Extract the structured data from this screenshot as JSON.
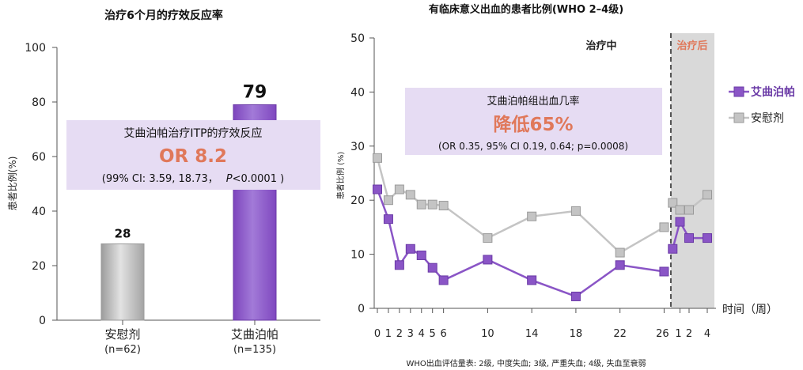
{
  "colors": {
    "purple": "#8a55c6",
    "purple_dark": "#6a3aa6",
    "gray": "#c4c4c4",
    "gray_dark": "#9a9a9a",
    "orange": "#e0785a",
    "callout_bg": "#e6dcf3",
    "post_bg": "#d9d9d9"
  },
  "chart_data": [
    {
      "type": "bar",
      "title": "治疗6个月的疗效反应率",
      "ylabel": "患者比例(%)",
      "ylim": [
        0,
        100
      ],
      "yticks": [
        0,
        20,
        40,
        60,
        80,
        100
      ],
      "categories": [
        {
          "name": "安慰剂",
          "n": "(n=62)",
          "value": 28,
          "label": "28",
          "color": "gray"
        },
        {
          "name": "艾曲泊帕",
          "n": "(n=135)",
          "value": 79,
          "label": "79",
          "color": "purple"
        }
      ],
      "callout": {
        "line1": "艾曲泊帕治疗ITP的疗效反应",
        "big": "OR 8.2",
        "ci": "(99% CI: 3.59, 18.73，",
        "p_italic": "P",
        "p_rest": "<0.0001 )"
      }
    },
    {
      "type": "line",
      "title": "有临床意义出血的患者比例(WHO 2–4级)",
      "ylabel": "患者比例 (%)",
      "ylim": [
        0,
        50
      ],
      "yticks": [
        0,
        10,
        20,
        30,
        40,
        50
      ],
      "xlabel": "时间（周）",
      "x_ticks_during": [
        0,
        1,
        2,
        3,
        4,
        5,
        6,
        10,
        14,
        18,
        22,
        26
      ],
      "x_ticks_after": [
        1,
        2,
        4
      ],
      "phase_during": "治疗中",
      "phase_after": "治疗后",
      "series": [
        {
          "name": "艾曲泊帕",
          "color": "purple",
          "during": {
            "x": [
              0,
              1,
              2,
              3,
              4,
              5,
              6,
              10,
              14,
              18,
              22,
              26
            ],
            "y": [
              22,
              16.5,
              8,
              11,
              9.8,
              7.5,
              5.2,
              9,
              5.2,
              2.2,
              8,
              6.8
            ]
          },
          "after": {
            "x": [
              0.2,
              1,
              2,
              4
            ],
            "y": [
              11,
              16,
              13,
              13
            ]
          }
        },
        {
          "name": "安慰剂",
          "color": "gray",
          "during": {
            "x": [
              0,
              1,
              2,
              3,
              4,
              5,
              6,
              10,
              14,
              18,
              22,
              26
            ],
            "y": [
              27.8,
              20,
              22,
              21,
              19.2,
              19.2,
              19,
              13,
              17,
              18,
              10.3,
              15
            ]
          },
          "after": {
            "x": [
              0.2,
              1,
              2,
              4
            ],
            "y": [
              19.5,
              18.2,
              18.2,
              21
            ]
          }
        }
      ],
      "callout": {
        "line1": "艾曲泊帕组出血几率",
        "big": "降低65%",
        "stats": "(OR 0.35, 95% CI 0.19, 0.64; p=0.0008)"
      },
      "footnote": "WHO出血评估量表: 2级, 中度失血; 3级, 严重失血; 4级, 失血至衰弱"
    }
  ]
}
